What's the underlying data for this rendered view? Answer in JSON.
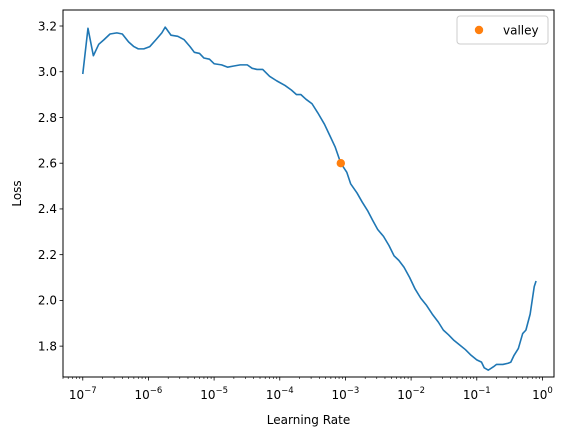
{
  "chart_data": {
    "type": "line",
    "xlabel": "Learning Rate",
    "ylabel": "Loss",
    "x_scale": "log",
    "xlim": [
      5e-08,
      1.5
    ],
    "ylim": [
      1.665,
      3.27
    ],
    "grid": false,
    "legend_position": "top-right",
    "x_ticks": [
      {
        "value": 1e-07,
        "base": "10",
        "exp": "−7"
      },
      {
        "value": 1e-06,
        "base": "10",
        "exp": "−6"
      },
      {
        "value": 1e-05,
        "base": "10",
        "exp": "−5"
      },
      {
        "value": 0.0001,
        "base": "10",
        "exp": "−4"
      },
      {
        "value": 0.001,
        "base": "10",
        "exp": "−3"
      },
      {
        "value": 0.01,
        "base": "10",
        "exp": "−2"
      },
      {
        "value": 0.1,
        "base": "10",
        "exp": "−1"
      },
      {
        "value": 1,
        "base": "10",
        "exp": "0"
      }
    ],
    "y_ticks": [
      {
        "value": 1.8,
        "label": "1.8"
      },
      {
        "value": 2.0,
        "label": "2.0"
      },
      {
        "value": 2.2,
        "label": "2.2"
      },
      {
        "value": 2.4,
        "label": "2.4"
      },
      {
        "value": 2.6,
        "label": "2.6"
      },
      {
        "value": 2.8,
        "label": "2.8"
      },
      {
        "value": 3.0,
        "label": "3.0"
      },
      {
        "value": 3.2,
        "label": "3.2"
      }
    ],
    "series": [
      {
        "color": "#1f77b4",
        "points": [
          [
            1e-07,
            2.99
          ],
          [
            1.2e-07,
            3.19
          ],
          [
            1.45e-07,
            3.07
          ],
          [
            1.75e-07,
            3.12
          ],
          [
            2.1e-07,
            3.14
          ],
          [
            2.6e-07,
            3.165
          ],
          [
            3.3e-07,
            3.17
          ],
          [
            4e-07,
            3.165
          ],
          [
            5e-07,
            3.13
          ],
          [
            6e-07,
            3.11
          ],
          [
            7e-07,
            3.1
          ],
          [
            8.5e-07,
            3.1
          ],
          [
            1.05e-06,
            3.11
          ],
          [
            1.3e-06,
            3.14
          ],
          [
            1.6e-06,
            3.17
          ],
          [
            1.8e-06,
            3.195
          ],
          [
            2.2e-06,
            3.16
          ],
          [
            2.8e-06,
            3.155
          ],
          [
            3.5e-06,
            3.14
          ],
          [
            4.3e-06,
            3.11
          ],
          [
            5e-06,
            3.085
          ],
          [
            6e-06,
            3.08
          ],
          [
            7e-06,
            3.06
          ],
          [
            8.5e-06,
            3.055
          ],
          [
            1e-05,
            3.035
          ],
          [
            1.3e-05,
            3.03
          ],
          [
            1.6e-05,
            3.02
          ],
          [
            2e-05,
            3.025
          ],
          [
            2.5e-05,
            3.03
          ],
          [
            3.2e-05,
            3.03
          ],
          [
            3.8e-05,
            3.015
          ],
          [
            4.5e-05,
            3.01
          ],
          [
            5.5e-05,
            3.01
          ],
          [
            7e-05,
            2.98
          ],
          [
            9e-05,
            2.96
          ],
          [
            0.00012,
            2.94
          ],
          [
            0.00015,
            2.92
          ],
          [
            0.00018,
            2.9
          ],
          [
            0.00021,
            2.9
          ],
          [
            0.00025,
            2.88
          ],
          [
            0.00031,
            2.86
          ],
          [
            0.00038,
            2.82
          ],
          [
            0.00048,
            2.77
          ],
          [
            0.00058,
            2.72
          ],
          [
            0.0007,
            2.67
          ],
          [
            0.00085,
            2.6
          ],
          [
            0.00105,
            2.56
          ],
          [
            0.0012,
            2.51
          ],
          [
            0.0015,
            2.47
          ],
          [
            0.0018,
            2.43
          ],
          [
            0.0022,
            2.39
          ],
          [
            0.0026,
            2.35
          ],
          [
            0.0031,
            2.31
          ],
          [
            0.0038,
            2.28
          ],
          [
            0.0046,
            2.24
          ],
          [
            0.0055,
            2.195
          ],
          [
            0.0065,
            2.175
          ],
          [
            0.0078,
            2.145
          ],
          [
            0.0095,
            2.1
          ],
          [
            0.0115,
            2.05
          ],
          [
            0.014,
            2.01
          ],
          [
            0.017,
            1.98
          ],
          [
            0.021,
            1.94
          ],
          [
            0.026,
            1.905
          ],
          [
            0.031,
            1.87
          ],
          [
            0.037,
            1.85
          ],
          [
            0.045,
            1.825
          ],
          [
            0.055,
            1.805
          ],
          [
            0.067,
            1.785
          ],
          [
            0.082,
            1.76
          ],
          [
            0.1,
            1.74
          ],
          [
            0.118,
            1.73
          ],
          [
            0.13,
            1.705
          ],
          [
            0.15,
            1.695
          ],
          [
            0.18,
            1.71
          ],
          [
            0.2,
            1.72
          ],
          [
            0.25,
            1.72
          ],
          [
            0.3,
            1.725
          ],
          [
            0.33,
            1.73
          ],
          [
            0.37,
            1.76
          ],
          [
            0.43,
            1.79
          ],
          [
            0.5,
            1.855
          ],
          [
            0.56,
            1.87
          ],
          [
            0.65,
            1.94
          ],
          [
            0.75,
            2.06
          ],
          [
            0.8,
            2.085
          ]
        ]
      }
    ],
    "markers": [
      {
        "name": "valley",
        "x": 0.00085,
        "y": 2.6,
        "color": "#ff7f0e"
      }
    ]
  }
}
